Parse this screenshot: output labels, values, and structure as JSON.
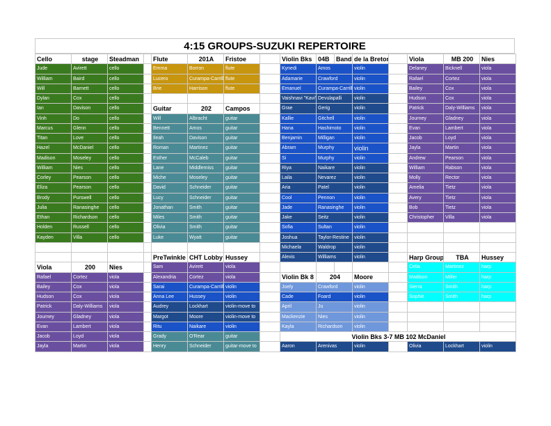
{
  "title": "4:15 GROUPS-SUZUKI REPERTOIRE",
  "colors": {
    "cello": "#3a7a1e",
    "flute": "#c7950e",
    "guitar": "#4a8a94",
    "violin_blue": "#1a52c8",
    "violin_dark": "#1f4a8c",
    "violin_light": "#6f97db",
    "viola": "#6a4fa0",
    "harp": "#00ffff"
  },
  "cello": {
    "header": [
      "Cello",
      "stage",
      "Steadman"
    ],
    "rows": [
      [
        "Jude",
        "Avirett",
        "cello"
      ],
      [
        "William",
        "Baird",
        "cello"
      ],
      [
        "Will",
        "Barnett",
        "cello"
      ],
      [
        "Dylan",
        "Cox",
        "cello"
      ],
      [
        "Ian",
        "Davison",
        "cello"
      ],
      [
        "Vinh",
        "Do",
        "cello"
      ],
      [
        "Marcus",
        "Glenn",
        "cello"
      ],
      [
        "Titan",
        "Love",
        "cello"
      ],
      [
        "Hazel",
        "McDaniel",
        "cello"
      ],
      [
        "Madison",
        "Moseley",
        "cello"
      ],
      [
        "William",
        "Nies",
        "cello"
      ],
      [
        "Corley",
        "Pearson",
        "cello"
      ],
      [
        "Eliza",
        "Pearson",
        "cello"
      ],
      [
        "Brody",
        "Purswell",
        "cello"
      ],
      [
        "Julia",
        "Ranasinghe",
        "cello"
      ],
      [
        "Ethan",
        "Richardson",
        "cello"
      ],
      [
        "Holden",
        "Russell",
        "cello"
      ],
      [
        "Kayden",
        "Villa",
        "cello"
      ]
    ]
  },
  "flute": {
    "header": [
      "Flute",
      "201A",
      "Fristoe"
    ],
    "rows": [
      [
        "Emma",
        "Borron",
        "flute"
      ],
      [
        "Lucero",
        "Curampa-Carrillo",
        "flute"
      ],
      [
        "Brie",
        "Harrison",
        "flute"
      ]
    ]
  },
  "guitar": {
    "header": [
      "Guitar",
      "202",
      "Campos"
    ],
    "rows": [
      [
        "Will",
        "Albracht",
        "guitar"
      ],
      [
        "Bennett",
        "Amos",
        "guitar"
      ],
      [
        "Ileah",
        "Davison",
        "guitar"
      ],
      [
        "Roman",
        "Martinez",
        "guitar"
      ],
      [
        "Esther",
        "McCaleb",
        "guitar"
      ],
      [
        "Lane",
        "Middlemiss",
        "guitar"
      ],
      [
        "Miche",
        "Moseley",
        "guitar"
      ],
      [
        "David",
        "Schneider",
        "guitar"
      ],
      [
        "Lucy",
        "Schneider",
        "guitar"
      ],
      [
        "Jonathan",
        "Smith",
        "guitar"
      ],
      [
        "Miles",
        "Smith",
        "guitar"
      ],
      [
        "Olivia",
        "Smith",
        "guitar"
      ],
      [
        "Luke",
        "Wyatt",
        "guitar"
      ]
    ]
  },
  "pretwinkle": {
    "header": [
      "PreTwinkle",
      "CHT Lobby",
      "Hussey"
    ],
    "rows": [
      [
        "Sam",
        "Avirett",
        "viola"
      ],
      [
        "Alexandria",
        "Cortez",
        "viola"
      ],
      [
        "Sarai",
        "Curampa-Carrillo",
        "violin"
      ],
      [
        "Anna Lee",
        "Hussey",
        "violin"
      ],
      [
        "Audrey",
        "Lockhart",
        "violin-move to"
      ],
      [
        "Margot",
        "Moore",
        "violin-move to"
      ],
      [
        "Ritu",
        "Naikare",
        "violin"
      ],
      [
        "Grady",
        "O'Rear",
        "guitar"
      ],
      [
        "Henry",
        "Schneider",
        "guitar-move to"
      ]
    ]
  },
  "violin_bks": {
    "header": [
      "Violin Bks",
      "04B",
      "Band Room",
      "de la Bretonne"
    ],
    "rows": [
      [
        "Kynedi",
        "Amos",
        "violin"
      ],
      [
        "Adamarie",
        "Crawford",
        "violin"
      ],
      [
        "Emanuel",
        "Curampa-Carrillo",
        "violin"
      ],
      [
        "Vaishnavi \"Kavi\"",
        "Devulapalli",
        "violin"
      ],
      [
        "Grae",
        "Gerig",
        "violin"
      ],
      [
        "Kallie",
        "Gitchell",
        "violin"
      ],
      [
        "Hana",
        "Hashimoto",
        "violin"
      ],
      [
        "Benjamin",
        "Milligan",
        "violin"
      ],
      [
        "Abram",
        "Murphy",
        "violin"
      ],
      [
        "Si",
        "Murphy",
        "violin"
      ],
      [
        "Riya",
        "Naikare",
        "violin"
      ],
      [
        "Laila",
        "Nevarez",
        "violin"
      ],
      [
        "Aria",
        "Patel",
        "violin"
      ],
      [
        "Cool",
        "Pennon",
        "violin"
      ],
      [
        "Jade",
        "Ranasinghe",
        "violin"
      ],
      [
        "Jake",
        "Seitz",
        "violin"
      ],
      [
        "Sofia",
        "Sultan",
        "violin"
      ],
      [
        "Joshua",
        "Taylor-Restine",
        "violin"
      ],
      [
        "Michaela",
        "Waldrop",
        "violin"
      ],
      [
        "Alexis",
        "Williams",
        "violin"
      ]
    ]
  },
  "violin_bk8": {
    "header": [
      "Violin Bk 8",
      "204",
      "Moore"
    ],
    "rows": [
      [
        "Joely",
        "Crawford",
        "violin"
      ],
      [
        "Cade",
        "Foard",
        "violin"
      ],
      [
        "April",
        "Ju",
        "violin"
      ],
      [
        "Mackenzie",
        "Nies",
        "violin"
      ],
      [
        "Kayla",
        "Richardson",
        "violin"
      ]
    ]
  },
  "violin_bks37": {
    "header": "Violin Bks 3-7 MB 102 McDaniel",
    "rows": [
      [
        "Aaron",
        "Arenivas",
        "violin"
      ],
      [
        "Olivia",
        "Lockhart",
        "violin"
      ]
    ]
  },
  "viola_right": {
    "header": [
      "Viola",
      "MB 200",
      "Nies"
    ],
    "rows": [
      [
        "Delaney",
        "Bicknell",
        "viola"
      ],
      [
        "Rafael",
        "Cortez",
        "viola"
      ],
      [
        "Bailey",
        "Cox",
        "viola"
      ],
      [
        "Hudson",
        "Cox",
        "viola"
      ],
      [
        "Patrick",
        "Daly-Williams",
        "viola"
      ],
      [
        "Journey",
        "Gladney",
        "viola"
      ],
      [
        "Evan",
        "Lambert",
        "viola"
      ],
      [
        "Jacob",
        "Loyd",
        "viola"
      ],
      [
        "Jayla",
        "Martin",
        "viola"
      ],
      [
        "Andrew",
        "Pearson",
        "viola"
      ],
      [
        "William",
        "Rabson",
        "viola"
      ],
      [
        "Molly",
        "Rector",
        "viola"
      ],
      [
        "Amelia",
        "Tietz",
        "viola"
      ],
      [
        "Avery",
        "Tietz",
        "viola"
      ],
      [
        "Bob",
        "Tietz",
        "viola"
      ],
      [
        "Christopher",
        "Villa",
        "viola"
      ]
    ]
  },
  "viola_left": {
    "header": [
      "Viola",
      "200",
      "Nies"
    ],
    "rows": [
      [
        "Rafael",
        "Cortez",
        "viola"
      ],
      [
        "Bailey",
        "Cox",
        "viola"
      ],
      [
        "Hudson",
        "Cox",
        "viola"
      ],
      [
        "Patrick",
        "Daly-Williams",
        "viola"
      ],
      [
        "Journey",
        "Gladney",
        "viola"
      ],
      [
        "Evan",
        "Lambert",
        "viola"
      ],
      [
        "Jacob",
        "Loyd",
        "viola"
      ],
      [
        "Jayla",
        "Martin",
        "viola"
      ]
    ]
  },
  "harp": {
    "header": [
      "Harp Group",
      "TBA",
      "Hussey"
    ],
    "rows": [
      [
        "Celia",
        "Martinez",
        "harp"
      ],
      [
        "Madison",
        "Miller",
        "harp"
      ],
      [
        "Sierra",
        "Smith",
        "harp"
      ],
      [
        "Sophie",
        "Smith",
        "harp"
      ]
    ]
  }
}
